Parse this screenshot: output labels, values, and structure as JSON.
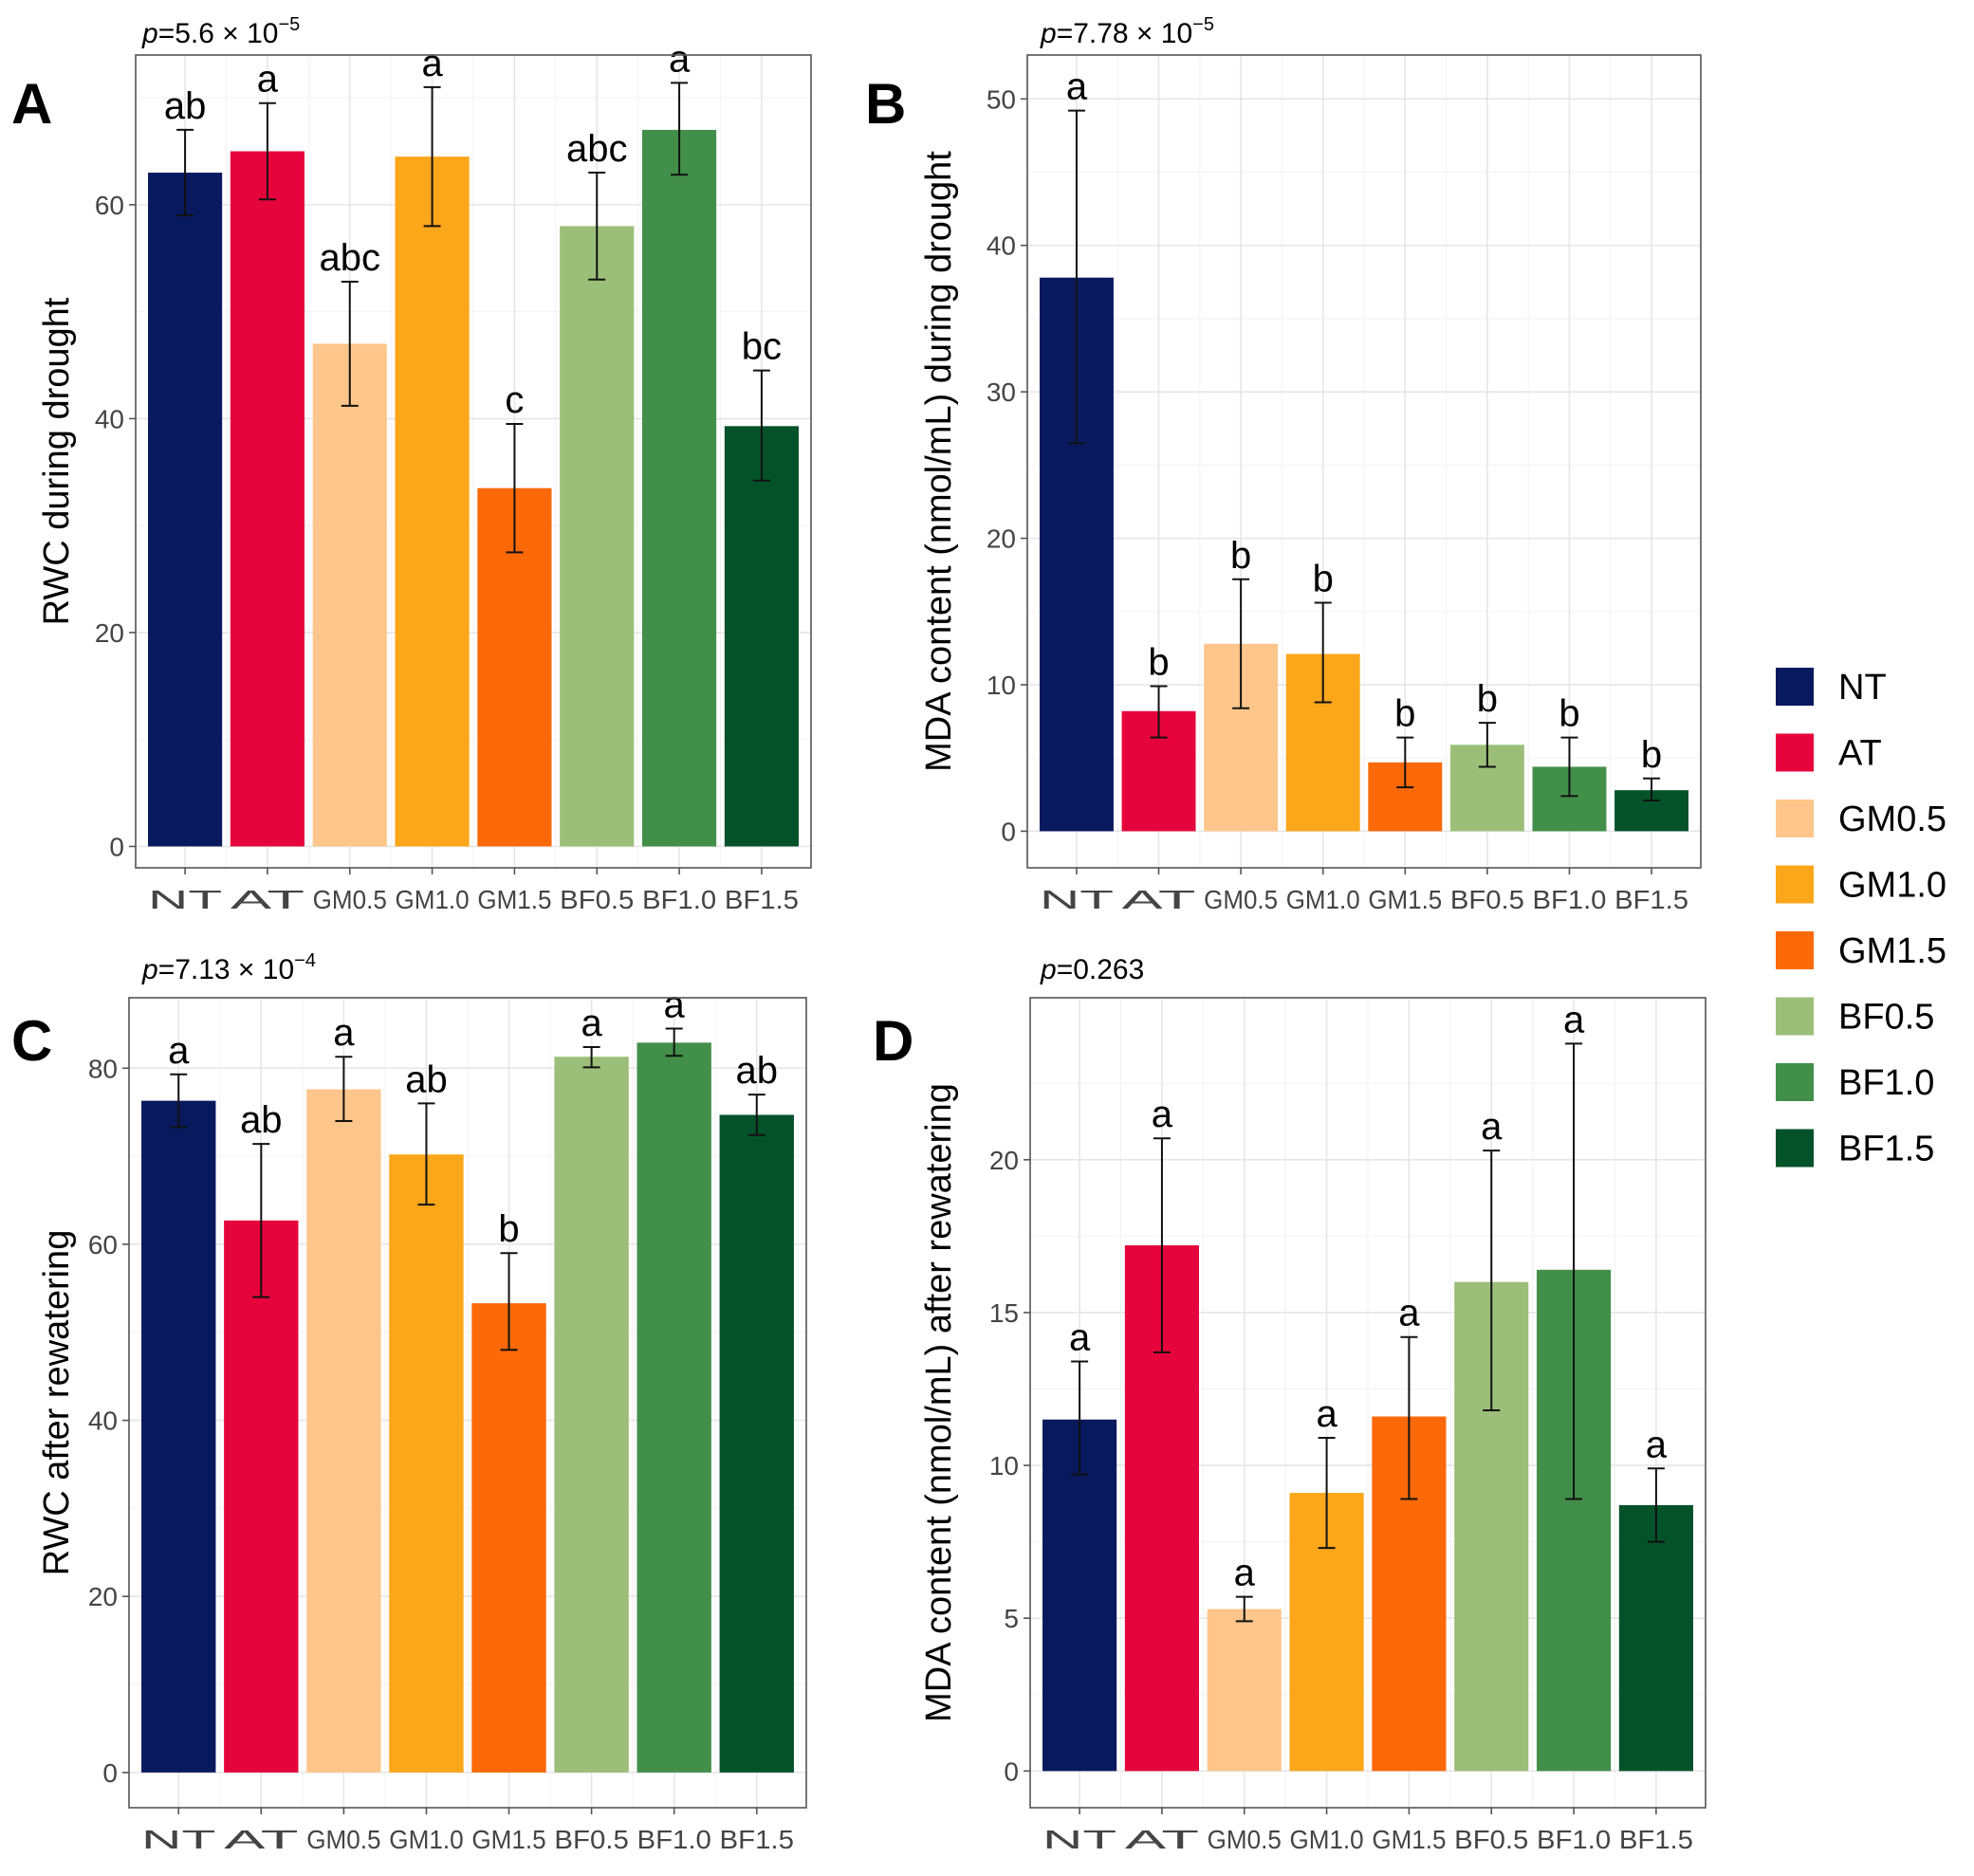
{
  "legend": {
    "items": [
      {
        "label": "NT",
        "color": "#08195e"
      },
      {
        "label": "AT",
        "color": "#e6043c"
      },
      {
        "label": "GM0.5",
        "color": "#fec68b"
      },
      {
        "label": "GM1.0",
        "color": "#fca61a"
      },
      {
        "label": "GM1.5",
        "color": "#fb6908"
      },
      {
        "label": "BF0.5",
        "color": "#9bbf78"
      },
      {
        "label": "BF1.0",
        "color": "#428f4a"
      },
      {
        "label": "BF1.5",
        "color": "#04522a"
      }
    ]
  },
  "chart_data": [
    {
      "panel": "A",
      "type": "bar",
      "p_prefix": "p",
      "p_text": "=5.6 × 10",
      "p_exp": "−5",
      "ylabel": "RWC during drought",
      "categories": [
        "NT",
        "AT",
        "GM0.5",
        "GM1.0",
        "GM1.5",
        "BF0.5",
        "BF1.0",
        "BF1.5"
      ],
      "values": [
        63,
        65,
        47,
        64.5,
        33.5,
        58,
        67,
        39.3
      ],
      "err_low": [
        59,
        60.5,
        41.2,
        58,
        27.5,
        53,
        62.8,
        34.2
      ],
      "err_high": [
        67,
        69.5,
        52.8,
        71,
        39.5,
        63,
        71.4,
        44.5
      ],
      "labels": [
        "ab",
        "a",
        "abc",
        "a",
        "c",
        "abc",
        "a",
        "bc"
      ],
      "ylim": [
        -2,
        74
      ],
      "yticks": [
        0,
        20,
        40,
        60
      ]
    },
    {
      "panel": "B",
      "type": "bar",
      "p_prefix": "p",
      "p_text": "=7.78 × 10",
      "p_exp": "−5",
      "ylabel": "MDA content (nmol/mL) during drought",
      "categories": [
        "NT",
        "AT",
        "GM0.5",
        "GM1.0",
        "GM1.5",
        "BF0.5",
        "BF1.0",
        "BF1.5"
      ],
      "values": [
        37.8,
        8.2,
        12.8,
        12.1,
        4.7,
        5.9,
        4.4,
        2.8
      ],
      "err_low": [
        26.5,
        6.4,
        8.4,
        8.8,
        3.0,
        4.4,
        2.4,
        2.1
      ],
      "err_high": [
        49.2,
        9.9,
        17.2,
        15.6,
        6.4,
        7.4,
        6.4,
        3.6
      ],
      "labels": [
        "a",
        "b",
        "b",
        "b",
        "b",
        "b",
        "b",
        "b"
      ],
      "ylim": [
        -2.5,
        53
      ],
      "yticks": [
        0,
        10,
        20,
        30,
        40,
        50
      ]
    },
    {
      "panel": "C",
      "type": "bar",
      "p_prefix": "p",
      "p_text": "=7.13 × 10",
      "p_exp": "−4",
      "ylabel": "RWC after rewatering",
      "categories": [
        "NT",
        "AT",
        "GM0.5",
        "GM1.0",
        "GM1.5",
        "BF0.5",
        "BF1.0",
        "BF1.5"
      ],
      "values": [
        76.3,
        62.7,
        77.6,
        70.2,
        53.3,
        81.3,
        82.9,
        74.7
      ],
      "err_low": [
        73.3,
        54.0,
        74.0,
        64.5,
        48.0,
        80.1,
        81.4,
        72.4
      ],
      "err_high": [
        79.3,
        71.4,
        81.3,
        76.0,
        59.0,
        82.4,
        84.5,
        77.0
      ],
      "labels": [
        "a",
        "ab",
        "a",
        "ab",
        "b",
        "a",
        "a",
        "ab"
      ],
      "ylim": [
        -4,
        88
      ],
      "yticks": [
        0,
        20,
        40,
        60,
        80
      ]
    },
    {
      "panel": "D",
      "type": "bar",
      "p_prefix": "p",
      "p_text": "=0.263",
      "p_exp": "",
      "ylabel": "MDA content (nmol/mL) after rewatering",
      "categories": [
        "NT",
        "AT",
        "GM0.5",
        "GM1.0",
        "GM1.5",
        "BF0.5",
        "BF1.0",
        "BF1.5"
      ],
      "values": [
        11.5,
        17.2,
        5.3,
        9.1,
        11.6,
        16.0,
        16.4,
        8.7
      ],
      "err_low": [
        9.7,
        13.7,
        4.9,
        7.3,
        8.9,
        11.8,
        8.9,
        7.5
      ],
      "err_high": [
        13.4,
        20.7,
        5.7,
        10.9,
        14.2,
        20.3,
        23.8,
        9.9
      ],
      "labels": [
        "a",
        "a",
        "a",
        "a",
        "a",
        "a",
        "a",
        "a"
      ],
      "ylim": [
        -1.2,
        25.3
      ],
      "yticks": [
        0,
        5,
        10,
        15,
        20
      ]
    }
  ]
}
